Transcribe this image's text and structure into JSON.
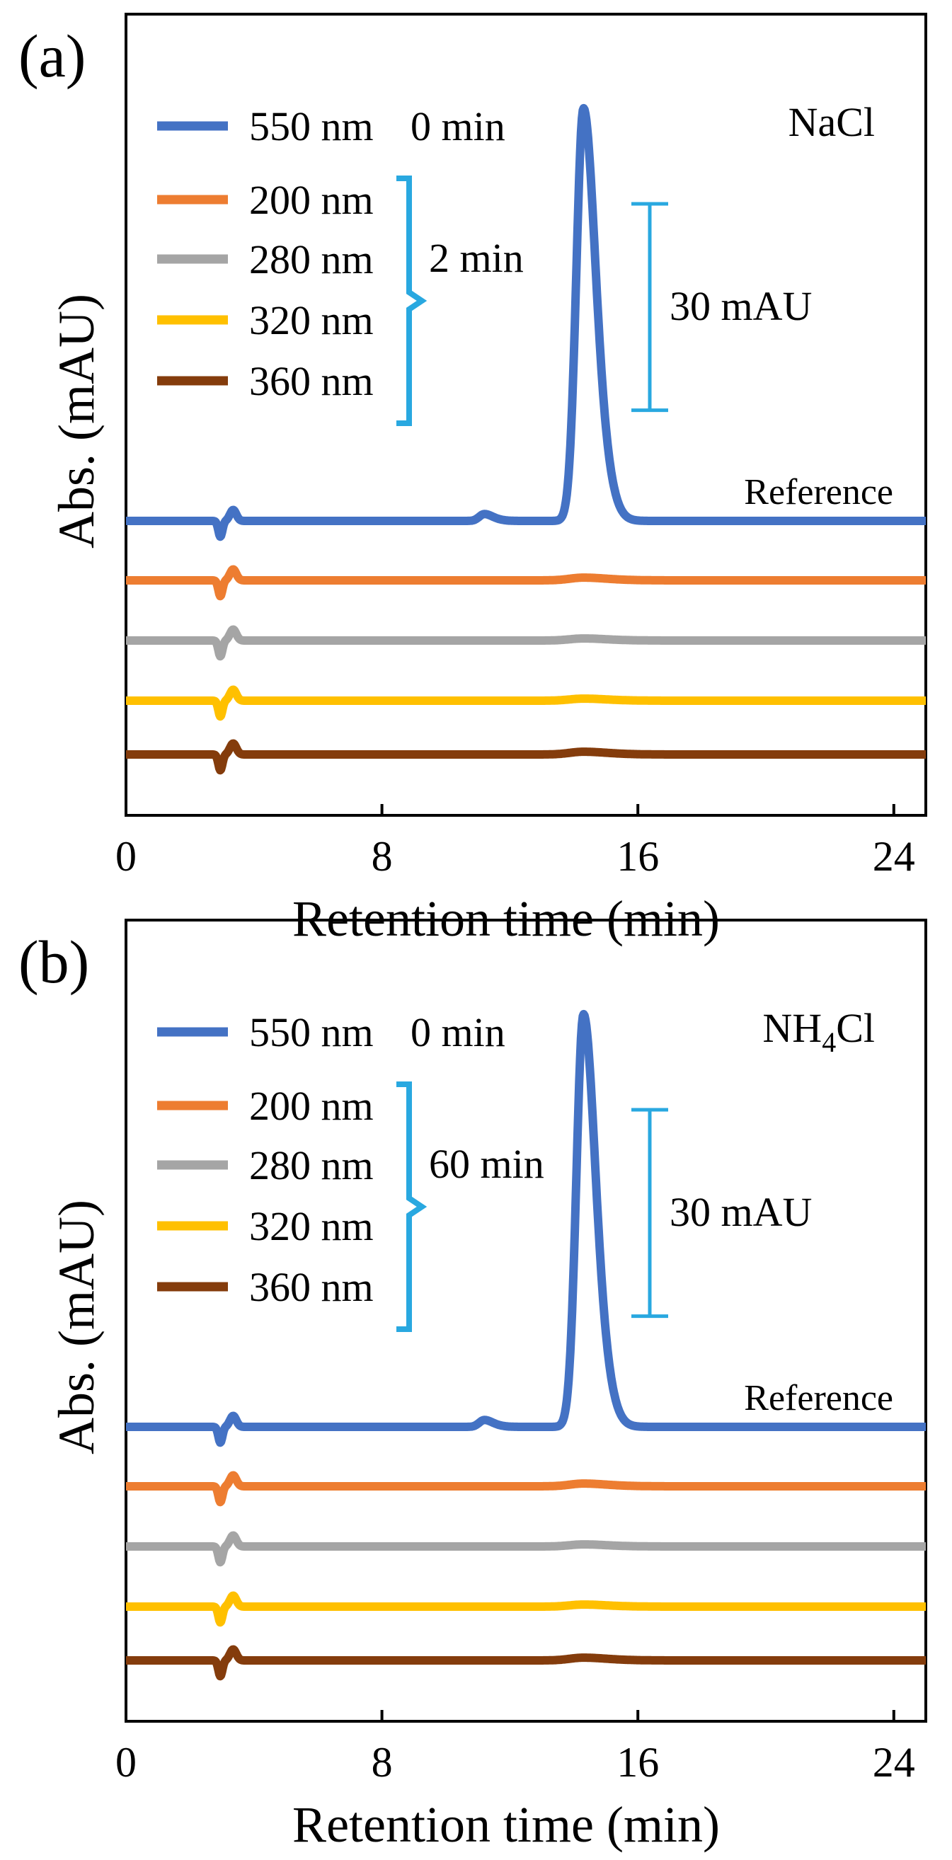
{
  "figure": {
    "panels": [
      {
        "label": "(a)",
        "salt": "NaCl",
        "time_group_label": "2 min",
        "reference_label": "Reference",
        "scale_bar_label": "30 mAU"
      },
      {
        "label": "(b)",
        "salt": "NH4Cl",
        "time_group_label": "60 min",
        "reference_label": "Reference",
        "scale_bar_label": "30 mAU"
      }
    ]
  },
  "chart_data": [
    {
      "type": "line",
      "panel": "(a)",
      "title": "NaCl",
      "xlabel": "Retention time (min)",
      "ylabel": "Abs. (mAU)",
      "xlim": [
        0,
        25
      ],
      "xticks": [
        0,
        8,
        16,
        24
      ],
      "x_tick_labels": [
        "0",
        "8",
        "16",
        "24"
      ],
      "scale_bar_mAU": 30,
      "legend_position": "top-left",
      "series": [
        {
          "name": "550 nm",
          "time": "0 min",
          "color": "#4472C4",
          "offset_mAU": 0,
          "peaks": [
            {
              "x": 14.3,
              "height_mAU": 60,
              "width": 0.42
            },
            {
              "x": 11.2,
              "height_mAU": 1,
              "width": 0.3
            }
          ],
          "reference": true
        },
        {
          "name": "200 nm",
          "time": "2 min",
          "color": "#ED7D31",
          "offset_mAU": -8.7,
          "peaks": [
            {
              "x": 14.3,
              "height_mAU": 0.4,
              "width": 0.8
            }
          ]
        },
        {
          "name": "280 nm",
          "time": "2 min",
          "color": "#A5A5A5",
          "offset_mAU": -17.4,
          "peaks": [
            {
              "x": 14.3,
              "height_mAU": 0.3,
              "width": 0.8
            }
          ]
        },
        {
          "name": "320 nm",
          "time": "2 min",
          "color": "#FFC000",
          "offset_mAU": -26.2,
          "peaks": [
            {
              "x": 14.3,
              "height_mAU": 0.3,
              "width": 0.8
            }
          ]
        },
        {
          "name": "360 nm",
          "time": "2 min",
          "color": "#843C0C",
          "offset_mAU": -34.1,
          "peaks": [
            {
              "x": 14.3,
              "height_mAU": 0.4,
              "width": 0.8
            }
          ]
        }
      ]
    },
    {
      "type": "line",
      "panel": "(b)",
      "title": "NH4Cl",
      "xlabel": "Retention time (min)",
      "ylabel": "Abs. (mAU)",
      "xlim": [
        0,
        25
      ],
      "xticks": [
        0,
        8,
        16,
        24
      ],
      "x_tick_labels": [
        "0",
        "8",
        "16",
        "24"
      ],
      "scale_bar_mAU": 30,
      "legend_position": "top-left",
      "series": [
        {
          "name": "550 nm",
          "time": "0 min",
          "color": "#4472C4",
          "offset_mAU": 0,
          "peaks": [
            {
              "x": 14.3,
              "height_mAU": 60,
              "width": 0.42
            },
            {
              "x": 11.2,
              "height_mAU": 1,
              "width": 0.3
            }
          ],
          "reference": true
        },
        {
          "name": "200 nm",
          "time": "60 min",
          "color": "#ED7D31",
          "offset_mAU": -8.5,
          "peaks": [
            {
              "x": 14.3,
              "height_mAU": 0.4,
              "width": 0.8
            }
          ]
        },
        {
          "name": "280 nm",
          "time": "60 min",
          "color": "#A5A5A5",
          "offset_mAU": -17.3,
          "peaks": [
            {
              "x": 14.3,
              "height_mAU": 0.3,
              "width": 0.8
            }
          ]
        },
        {
          "name": "320 nm",
          "time": "60 min",
          "color": "#FFC000",
          "offset_mAU": -26.3,
          "peaks": [
            {
              "x": 14.3,
              "height_mAU": 0.3,
              "width": 0.8
            }
          ]
        },
        {
          "name": "360 nm",
          "time": "60 min",
          "color": "#843C0C",
          "offset_mAU": -34.0,
          "peaks": [
            {
              "x": 14.3,
              "height_mAU": 0.4,
              "width": 0.8
            }
          ]
        }
      ]
    }
  ]
}
